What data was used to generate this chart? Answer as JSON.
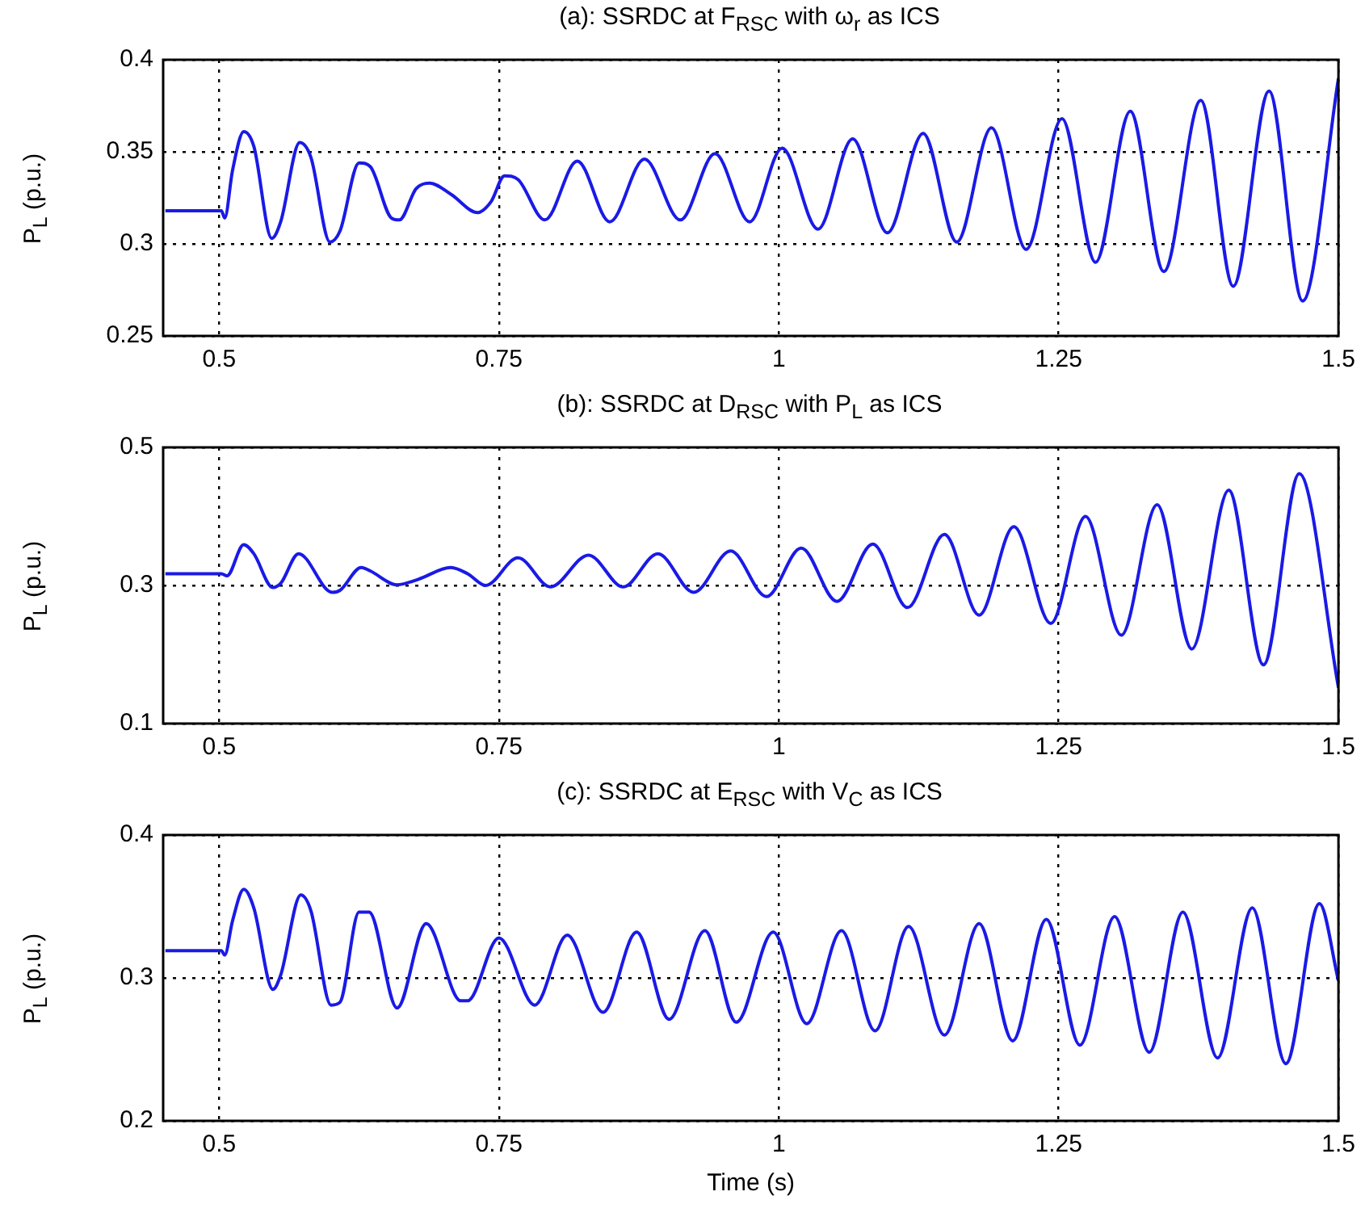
{
  "chart_data": [
    {
      "type": "line",
      "title": "(a): SSRDC at F$_{RSC}$ with ω$_{r}$ as ICS",
      "ylabel": "P$_{L}$ (p.u.)",
      "xlim": [
        0.45,
        1.5
      ],
      "xticks": [
        0.5,
        0.75,
        1,
        1.25,
        1.5
      ],
      "ylim": [
        0.25,
        0.4
      ],
      "yticks": [
        0.25,
        0.3,
        0.35,
        0.4
      ],
      "grid": true,
      "marker": "none",
      "line_style": "solid",
      "x": [
        0.452,
        0.502,
        0.505,
        0.512,
        0.522,
        0.531,
        0.547,
        0.555,
        0.572,
        0.582,
        0.599,
        0.608,
        0.625,
        0.635,
        0.654,
        0.661,
        0.676,
        0.688,
        0.707,
        0.731,
        0.743,
        0.755,
        0.767,
        0.791,
        0.82,
        0.849,
        0.88,
        0.912,
        0.943,
        0.974,
        1.003,
        1.035,
        1.066,
        1.097,
        1.129,
        1.159,
        1.19,
        1.221,
        1.253,
        1.283,
        1.314,
        1.344,
        1.377,
        1.406,
        1.438,
        1.468,
        1.5
      ],
      "series": [
        {
          "color": "#1a1ae6",
          "values": [
            0.318,
            0.318,
            0.314,
            0.34,
            0.361,
            0.353,
            0.303,
            0.312,
            0.355,
            0.347,
            0.301,
            0.307,
            0.344,
            0.342,
            0.314,
            0.313,
            0.33,
            0.333,
            0.327,
            0.317,
            0.323,
            0.337,
            0.335,
            0.313,
            0.345,
            0.312,
            0.346,
            0.313,
            0.349,
            0.312,
            0.352,
            0.308,
            0.357,
            0.306,
            0.36,
            0.301,
            0.363,
            0.297,
            0.368,
            0.29,
            0.372,
            0.285,
            0.378,
            0.277,
            0.383,
            0.269,
            0.39
          ]
        }
      ]
    },
    {
      "type": "line",
      "title": "(b): SSRDC at D$_{RSC}$ with P$_{L}$ as ICS",
      "ylabel": "P$_{L}$ (p.u.)",
      "xlim": [
        0.45,
        1.5
      ],
      "xticks": [
        0.5,
        0.75,
        1,
        1.25,
        1.5
      ],
      "ylim": [
        0.1,
        0.5
      ],
      "yticks": [
        0.1,
        0.3,
        0.5
      ],
      "grid": true,
      "marker": "none",
      "line_style": "solid",
      "x": [
        0.452,
        0.502,
        0.507,
        0.522,
        0.531,
        0.548,
        0.555,
        0.571,
        0.601,
        0.608,
        0.627,
        0.635,
        0.659,
        0.678,
        0.707,
        0.722,
        0.738,
        0.767,
        0.796,
        0.83,
        0.861,
        0.892,
        0.924,
        0.957,
        0.989,
        1.02,
        1.052,
        1.084,
        1.115,
        1.148,
        1.179,
        1.21,
        1.243,
        1.274,
        1.306,
        1.338,
        1.369,
        1.402,
        1.433,
        1.465,
        1.5
      ],
      "series": [
        {
          "color": "#1a1ae6",
          "values": [
            0.317,
            0.317,
            0.314,
            0.359,
            0.346,
            0.297,
            0.303,
            0.346,
            0.29,
            0.293,
            0.326,
            0.321,
            0.301,
            0.309,
            0.326,
            0.317,
            0.3,
            0.34,
            0.298,
            0.344,
            0.298,
            0.346,
            0.29,
            0.35,
            0.284,
            0.354,
            0.277,
            0.36,
            0.268,
            0.374,
            0.257,
            0.385,
            0.245,
            0.4,
            0.228,
            0.417,
            0.208,
            0.438,
            0.185,
            0.462,
            0.152
          ]
        }
      ]
    },
    {
      "type": "line",
      "title": "(c): SSRDC at E$_{RSC}$ with V$_{C}$ as ICS",
      "xlabel": "Time (s)",
      "ylabel": "P$_{L}$ (p.u.)",
      "xlim": [
        0.45,
        1.5
      ],
      "xticks": [
        0.5,
        0.75,
        1,
        1.25,
        1.5
      ],
      "ylim": [
        0.2,
        0.4
      ],
      "yticks": [
        0.2,
        0.3,
        0.4
      ],
      "grid": true,
      "marker": "none",
      "line_style": "solid",
      "x": [
        0.452,
        0.502,
        0.505,
        0.512,
        0.522,
        0.531,
        0.548,
        0.555,
        0.573,
        0.582,
        0.6,
        0.608,
        0.625,
        0.634,
        0.659,
        0.685,
        0.716,
        0.722,
        0.75,
        0.782,
        0.811,
        0.843,
        0.873,
        0.902,
        0.934,
        0.962,
        0.995,
        1.025,
        1.056,
        1.086,
        1.116,
        1.148,
        1.179,
        1.209,
        1.239,
        1.269,
        1.3,
        1.331,
        1.361,
        1.392,
        1.423,
        1.453,
        1.483,
        1.5
      ],
      "series": [
        {
          "color": "#1a1ae6",
          "values": [
            0.319,
            0.319,
            0.316,
            0.34,
            0.362,
            0.349,
            0.292,
            0.302,
            0.358,
            0.347,
            0.281,
            0.283,
            0.346,
            0.346,
            0.279,
            0.338,
            0.284,
            0.284,
            0.328,
            0.281,
            0.33,
            0.276,
            0.332,
            0.271,
            0.333,
            0.269,
            0.332,
            0.268,
            0.333,
            0.263,
            0.336,
            0.26,
            0.338,
            0.256,
            0.341,
            0.253,
            0.343,
            0.248,
            0.346,
            0.244,
            0.349,
            0.24,
            0.352,
            0.298
          ]
        }
      ]
    }
  ]
}
